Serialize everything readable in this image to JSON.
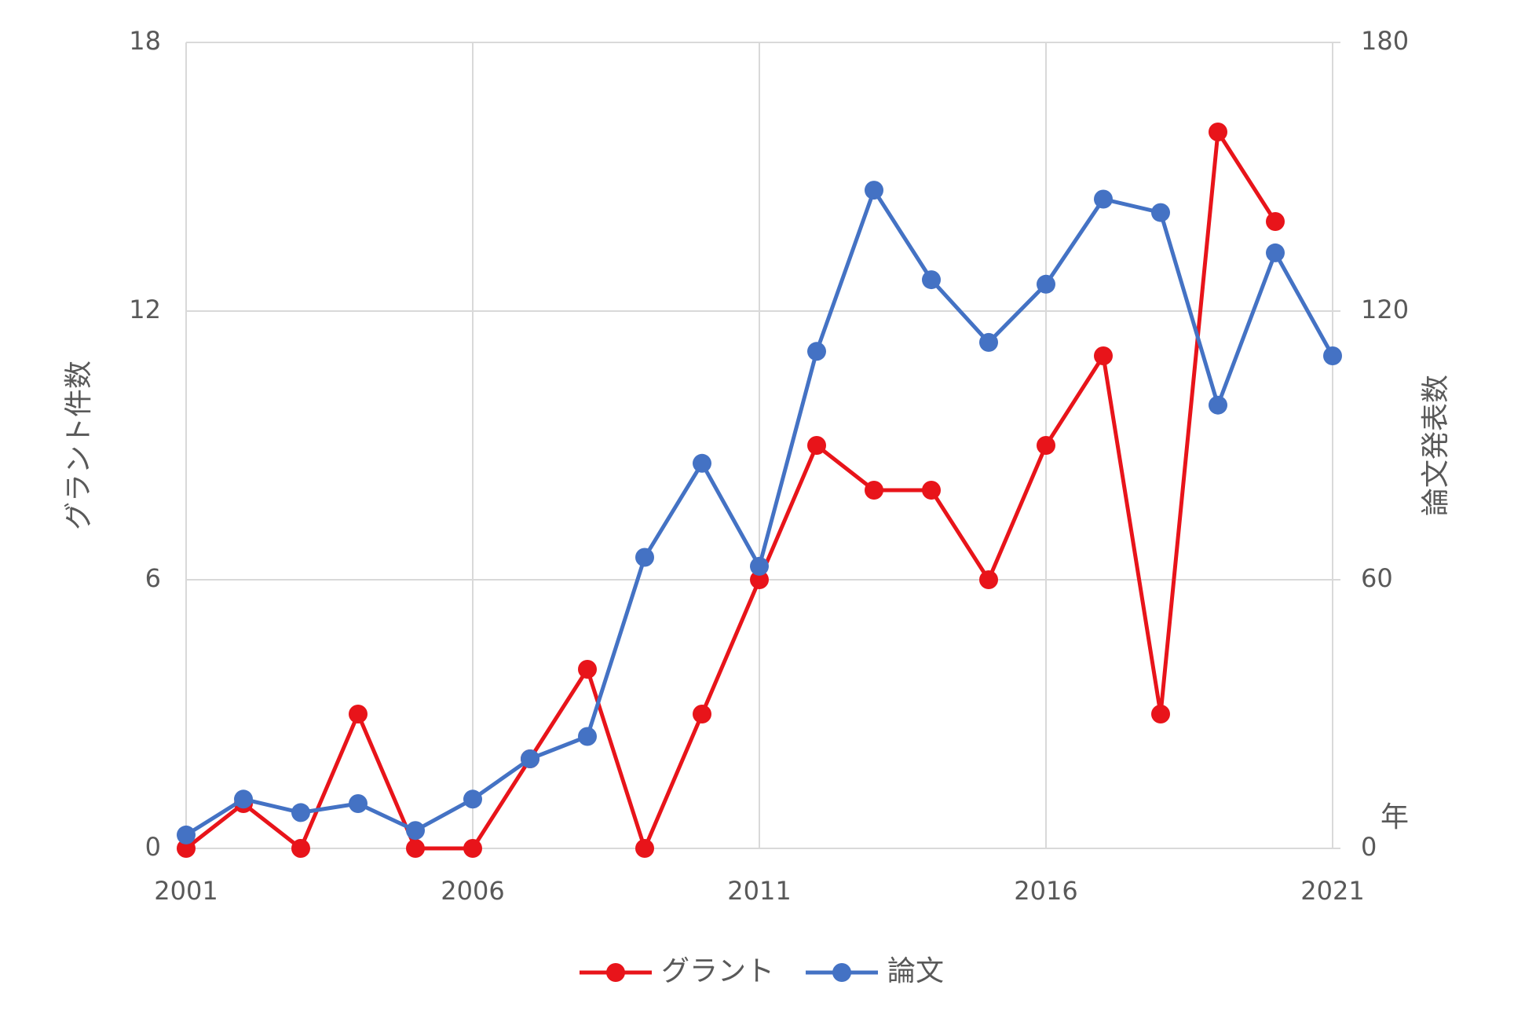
{
  "chart_data": {
    "type": "line",
    "y_axis_title": "グラント件数",
    "y2_axis_title": "論文発表数",
    "x_axis_title": "年",
    "x": [
      2001,
      2002,
      2003,
      2004,
      2005,
      2006,
      2007,
      2008,
      2009,
      2010,
      2011,
      2012,
      2013,
      2014,
      2015,
      2016,
      2017,
      2018,
      2019,
      2020,
      2021
    ],
    "series": [
      {
        "name": "グラント",
        "color": "#e8141a",
        "values": [
          0,
          1,
          0,
          3,
          0,
          0,
          2,
          4,
          0,
          3,
          6,
          9,
          8,
          8,
          6,
          9,
          11,
          3,
          16,
          14,
          null
        ]
      },
      {
        "name": "論文",
        "color": "#4472c4",
        "axis": "y2",
        "values": [
          3,
          11,
          8,
          10,
          4,
          11,
          20,
          25,
          65,
          86,
          63,
          111,
          147,
          127,
          113,
          126,
          145,
          142,
          99,
          133,
          110
        ]
      }
    ],
    "xlim": [
      2001,
      2021
    ],
    "xticks": [
      2001,
      2006,
      2011,
      2016,
      2021
    ],
    "ylim": [
      0,
      18
    ],
    "yticks": [
      0,
      6,
      12,
      18
    ],
    "y2lim": [
      0,
      180
    ],
    "y2ticks": [
      0,
      60,
      120,
      180
    ],
    "grid": true,
    "legend": "bottom"
  }
}
